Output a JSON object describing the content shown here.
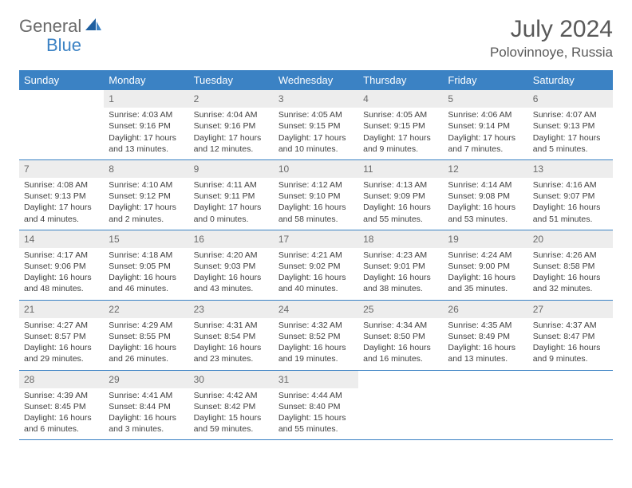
{
  "logo": {
    "text1": "General",
    "text2": "Blue"
  },
  "title": "July 2024",
  "location": "Polovinnoye, Russia",
  "colors": {
    "header_bg": "#3b82c4",
    "header_text": "#ffffff",
    "daynum_bg": "#ededed",
    "daynum_text": "#6a6a6a",
    "body_text": "#404040",
    "title_text": "#595959",
    "row_border": "#3b82c4"
  },
  "weekdays": [
    "Sunday",
    "Monday",
    "Tuesday",
    "Wednesday",
    "Thursday",
    "Friday",
    "Saturday"
  ],
  "weeks": [
    [
      {
        "n": "",
        "sr": "",
        "ss": "",
        "dl": ""
      },
      {
        "n": "1",
        "sr": "Sunrise: 4:03 AM",
        "ss": "Sunset: 9:16 PM",
        "dl": "Daylight: 17 hours and 13 minutes."
      },
      {
        "n": "2",
        "sr": "Sunrise: 4:04 AM",
        "ss": "Sunset: 9:16 PM",
        "dl": "Daylight: 17 hours and 12 minutes."
      },
      {
        "n": "3",
        "sr": "Sunrise: 4:05 AM",
        "ss": "Sunset: 9:15 PM",
        "dl": "Daylight: 17 hours and 10 minutes."
      },
      {
        "n": "4",
        "sr": "Sunrise: 4:05 AM",
        "ss": "Sunset: 9:15 PM",
        "dl": "Daylight: 17 hours and 9 minutes."
      },
      {
        "n": "5",
        "sr": "Sunrise: 4:06 AM",
        "ss": "Sunset: 9:14 PM",
        "dl": "Daylight: 17 hours and 7 minutes."
      },
      {
        "n": "6",
        "sr": "Sunrise: 4:07 AM",
        "ss": "Sunset: 9:13 PM",
        "dl": "Daylight: 17 hours and 5 minutes."
      }
    ],
    [
      {
        "n": "7",
        "sr": "Sunrise: 4:08 AM",
        "ss": "Sunset: 9:13 PM",
        "dl": "Daylight: 17 hours and 4 minutes."
      },
      {
        "n": "8",
        "sr": "Sunrise: 4:10 AM",
        "ss": "Sunset: 9:12 PM",
        "dl": "Daylight: 17 hours and 2 minutes."
      },
      {
        "n": "9",
        "sr": "Sunrise: 4:11 AM",
        "ss": "Sunset: 9:11 PM",
        "dl": "Daylight: 17 hours and 0 minutes."
      },
      {
        "n": "10",
        "sr": "Sunrise: 4:12 AM",
        "ss": "Sunset: 9:10 PM",
        "dl": "Daylight: 16 hours and 58 minutes."
      },
      {
        "n": "11",
        "sr": "Sunrise: 4:13 AM",
        "ss": "Sunset: 9:09 PM",
        "dl": "Daylight: 16 hours and 55 minutes."
      },
      {
        "n": "12",
        "sr": "Sunrise: 4:14 AM",
        "ss": "Sunset: 9:08 PM",
        "dl": "Daylight: 16 hours and 53 minutes."
      },
      {
        "n": "13",
        "sr": "Sunrise: 4:16 AM",
        "ss": "Sunset: 9:07 PM",
        "dl": "Daylight: 16 hours and 51 minutes."
      }
    ],
    [
      {
        "n": "14",
        "sr": "Sunrise: 4:17 AM",
        "ss": "Sunset: 9:06 PM",
        "dl": "Daylight: 16 hours and 48 minutes."
      },
      {
        "n": "15",
        "sr": "Sunrise: 4:18 AM",
        "ss": "Sunset: 9:05 PM",
        "dl": "Daylight: 16 hours and 46 minutes."
      },
      {
        "n": "16",
        "sr": "Sunrise: 4:20 AM",
        "ss": "Sunset: 9:03 PM",
        "dl": "Daylight: 16 hours and 43 minutes."
      },
      {
        "n": "17",
        "sr": "Sunrise: 4:21 AM",
        "ss": "Sunset: 9:02 PM",
        "dl": "Daylight: 16 hours and 40 minutes."
      },
      {
        "n": "18",
        "sr": "Sunrise: 4:23 AM",
        "ss": "Sunset: 9:01 PM",
        "dl": "Daylight: 16 hours and 38 minutes."
      },
      {
        "n": "19",
        "sr": "Sunrise: 4:24 AM",
        "ss": "Sunset: 9:00 PM",
        "dl": "Daylight: 16 hours and 35 minutes."
      },
      {
        "n": "20",
        "sr": "Sunrise: 4:26 AM",
        "ss": "Sunset: 8:58 PM",
        "dl": "Daylight: 16 hours and 32 minutes."
      }
    ],
    [
      {
        "n": "21",
        "sr": "Sunrise: 4:27 AM",
        "ss": "Sunset: 8:57 PM",
        "dl": "Daylight: 16 hours and 29 minutes."
      },
      {
        "n": "22",
        "sr": "Sunrise: 4:29 AM",
        "ss": "Sunset: 8:55 PM",
        "dl": "Daylight: 16 hours and 26 minutes."
      },
      {
        "n": "23",
        "sr": "Sunrise: 4:31 AM",
        "ss": "Sunset: 8:54 PM",
        "dl": "Daylight: 16 hours and 23 minutes."
      },
      {
        "n": "24",
        "sr": "Sunrise: 4:32 AM",
        "ss": "Sunset: 8:52 PM",
        "dl": "Daylight: 16 hours and 19 minutes."
      },
      {
        "n": "25",
        "sr": "Sunrise: 4:34 AM",
        "ss": "Sunset: 8:50 PM",
        "dl": "Daylight: 16 hours and 16 minutes."
      },
      {
        "n": "26",
        "sr": "Sunrise: 4:35 AM",
        "ss": "Sunset: 8:49 PM",
        "dl": "Daylight: 16 hours and 13 minutes."
      },
      {
        "n": "27",
        "sr": "Sunrise: 4:37 AM",
        "ss": "Sunset: 8:47 PM",
        "dl": "Daylight: 16 hours and 9 minutes."
      }
    ],
    [
      {
        "n": "28",
        "sr": "Sunrise: 4:39 AM",
        "ss": "Sunset: 8:45 PM",
        "dl": "Daylight: 16 hours and 6 minutes."
      },
      {
        "n": "29",
        "sr": "Sunrise: 4:41 AM",
        "ss": "Sunset: 8:44 PM",
        "dl": "Daylight: 16 hours and 3 minutes."
      },
      {
        "n": "30",
        "sr": "Sunrise: 4:42 AM",
        "ss": "Sunset: 8:42 PM",
        "dl": "Daylight: 15 hours and 59 minutes."
      },
      {
        "n": "31",
        "sr": "Sunrise: 4:44 AM",
        "ss": "Sunset: 8:40 PM",
        "dl": "Daylight: 15 hours and 55 minutes."
      },
      {
        "n": "",
        "sr": "",
        "ss": "",
        "dl": ""
      },
      {
        "n": "",
        "sr": "",
        "ss": "",
        "dl": ""
      },
      {
        "n": "",
        "sr": "",
        "ss": "",
        "dl": ""
      }
    ]
  ]
}
